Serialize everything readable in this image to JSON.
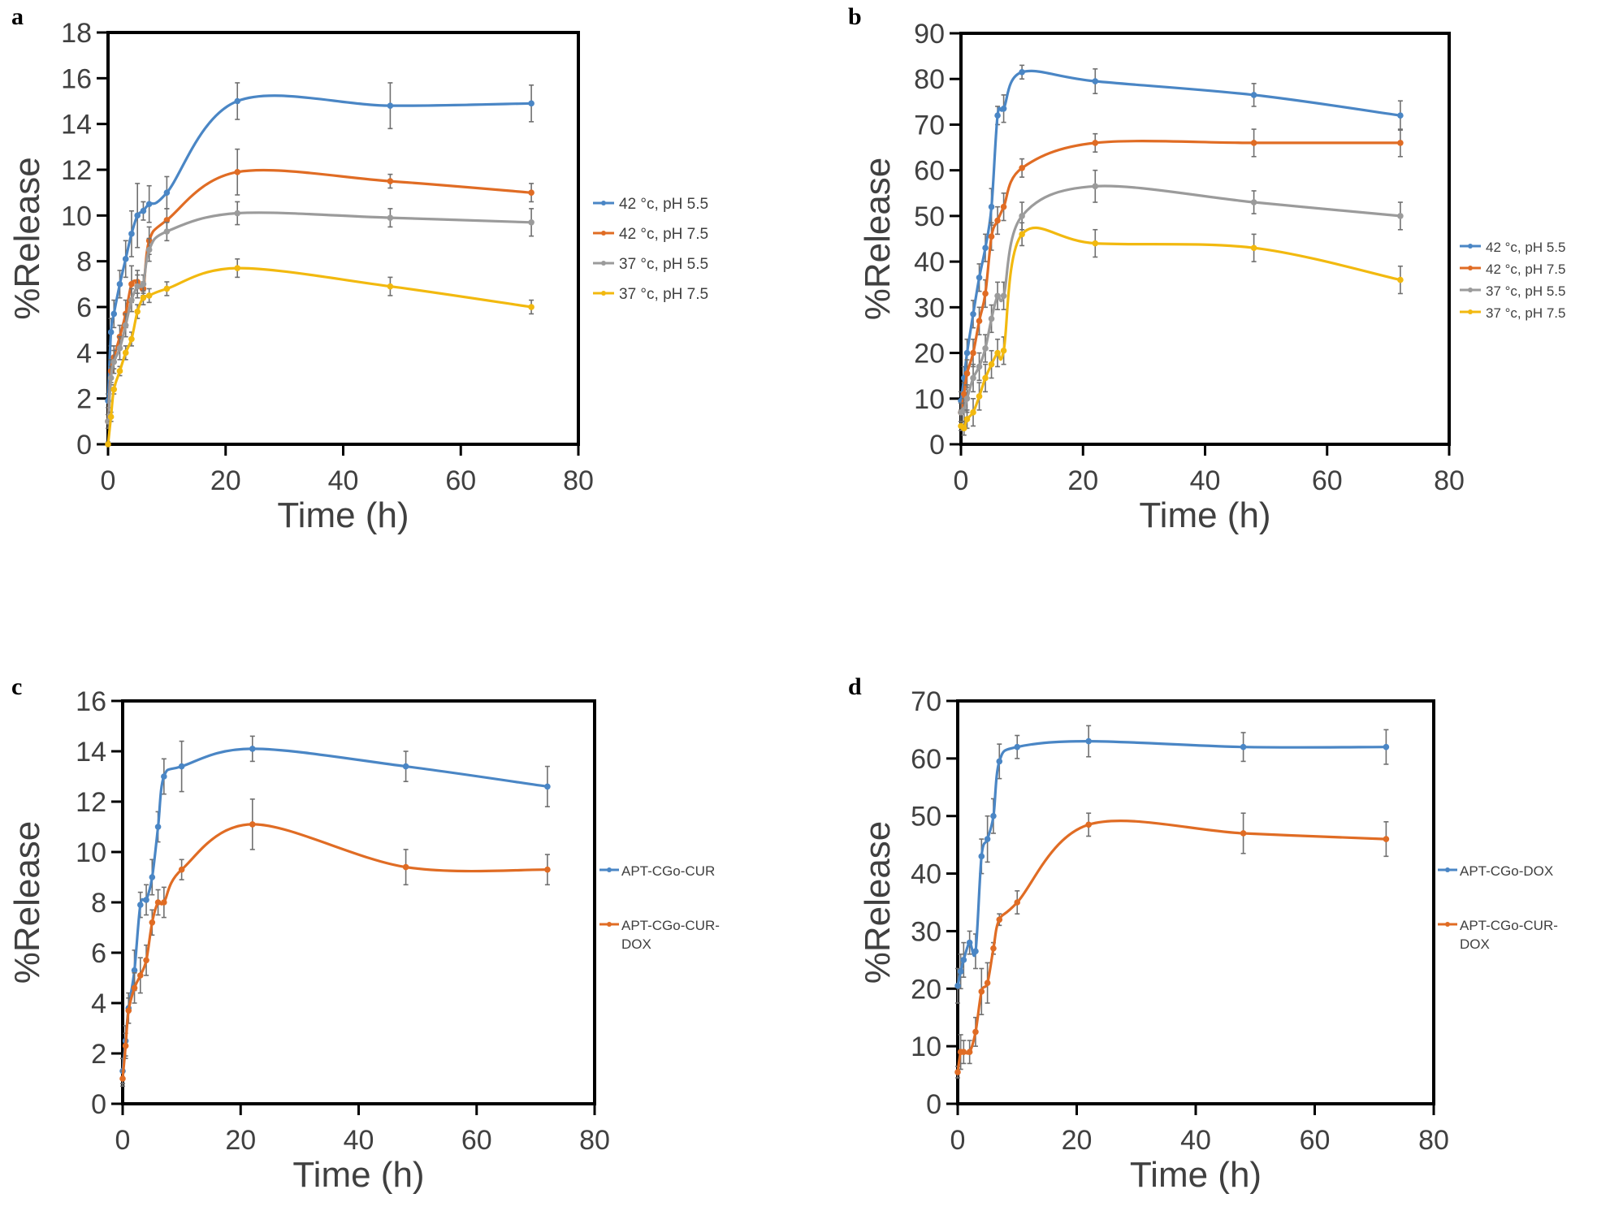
{
  "chart_data": [
    {
      "panel": "a",
      "type": "line",
      "title": "",
      "xlabel": "Time (h)",
      "ylabel": "%Release",
      "xlim": [
        0,
        80
      ],
      "ylim": [
        0,
        18
      ],
      "xticks": [
        0,
        20,
        40,
        60,
        80
      ],
      "yticks": [
        0,
        2,
        4,
        6,
        8,
        10,
        12,
        14,
        16,
        18
      ],
      "grid": false,
      "legend_position": "right",
      "x": [
        0,
        0.5,
        1,
        2,
        3,
        4,
        5,
        6,
        7,
        10,
        22,
        48,
        72
      ],
      "series": [
        {
          "name": "42 °c, pH 5.5",
          "color": "#4a86c5",
          "values": [
            1.9,
            4.9,
            5.7,
            7.0,
            8.1,
            9.2,
            10.0,
            10.2,
            10.5,
            11.0,
            15.0,
            14.8,
            14.9
          ],
          "errors": [
            0.3,
            0.6,
            0.6,
            0.6,
            0.8,
            1.0,
            1.4,
            0.4,
            0.8,
            0.7,
            0.8,
            1.0,
            0.8
          ]
        },
        {
          "name": "42 °c, pH 7.5",
          "color": "#e06c24",
          "values": [
            1.0,
            3.2,
            3.8,
            4.7,
            5.7,
            7.0,
            7.1,
            6.8,
            8.9,
            9.8,
            11.9,
            11.5,
            11.0
          ],
          "errors": [
            0.3,
            0.5,
            0.5,
            0.5,
            0.6,
            0.8,
            0.5,
            0.3,
            0.6,
            0.5,
            1.0,
            0.3,
            0.4
          ]
        },
        {
          "name": "37 °c, pH 5.5",
          "color": "#9b9b9b",
          "values": [
            1.0,
            2.9,
            3.6,
            4.2,
            5.2,
            6.3,
            6.9,
            7.0,
            8.5,
            9.3,
            10.1,
            9.9,
            9.7
          ],
          "errors": [
            0.3,
            0.5,
            0.5,
            0.5,
            0.5,
            0.5,
            0.5,
            0.4,
            0.5,
            0.4,
            0.5,
            0.4,
            0.6
          ]
        },
        {
          "name": "37 °c, pH 7.5",
          "color": "#f2b90f",
          "values": [
            0.0,
            1.2,
            2.4,
            3.2,
            4.0,
            4.6,
            5.8,
            6.4,
            6.5,
            6.8,
            7.7,
            6.9,
            6.0
          ],
          "errors": [
            0.1,
            0.2,
            0.2,
            0.2,
            0.3,
            0.3,
            0.3,
            0.3,
            0.3,
            0.3,
            0.4,
            0.4,
            0.3
          ]
        }
      ]
    },
    {
      "panel": "b",
      "type": "line",
      "title": "",
      "xlabel": "Time (h)",
      "ylabel": "%Release",
      "xlim": [
        0,
        80
      ],
      "ylim": [
        0,
        90
      ],
      "xticks": [
        0,
        20,
        40,
        60,
        80
      ],
      "yticks": [
        0,
        10,
        20,
        30,
        40,
        50,
        60,
        70,
        80,
        90
      ],
      "grid": false,
      "legend_position": "right",
      "x": [
        0,
        0.5,
        1,
        2,
        3,
        4,
        5,
        6,
        7,
        10,
        22,
        48,
        72
      ],
      "series": [
        {
          "name": "42 °c, pH 5.5",
          "color": "#4a86c5",
          "values": [
            9.5,
            14.5,
            20.0,
            28.5,
            36.5,
            43.0,
            52.0,
            72.0,
            73.5,
            81.5,
            79.5,
            76.5,
            72.0
          ],
          "errors": [
            2.0,
            2.5,
            3.0,
            3.0,
            3.0,
            3.0,
            4.0,
            2.0,
            3.0,
            1.5,
            2.7,
            2.5,
            3.2
          ]
        },
        {
          "name": "42 °c, pH 7.5",
          "color": "#e06c24",
          "values": [
            7.0,
            11.0,
            15.5,
            20.0,
            27.0,
            33.0,
            45.5,
            49.0,
            52.0,
            60.5,
            66.0,
            66.0,
            66.0
          ],
          "errors": [
            2.0,
            2.5,
            3.0,
            3.0,
            3.0,
            3.0,
            3.0,
            3.0,
            3.0,
            2.0,
            2.0,
            3.0,
            3.0
          ]
        },
        {
          "name": "37 °c, pH 5.5",
          "color": "#9b9b9b",
          "values": [
            7.0,
            7.5,
            10.0,
            14.5,
            17.0,
            21.0,
            27.5,
            32.5,
            32.5,
            50.0,
            56.5,
            53.0,
            50.0
          ],
          "errors": [
            2.0,
            2.5,
            3.0,
            3.0,
            3.0,
            3.0,
            3.0,
            3.0,
            3.0,
            3.0,
            3.5,
            2.5,
            3.0
          ]
        },
        {
          "name": "37 °c, pH 7.5",
          "color": "#f2b90f",
          "values": [
            4.0,
            3.5,
            5.5,
            7.0,
            10.5,
            14.5,
            17.5,
            20.0,
            20.5,
            46.0,
            44.0,
            43.0,
            36.0
          ],
          "errors": [
            1.0,
            1.5,
            2.0,
            3.0,
            3.0,
            3.0,
            3.0,
            3.0,
            3.0,
            2.5,
            3.0,
            3.0,
            3.0
          ]
        }
      ]
    },
    {
      "panel": "c",
      "type": "line",
      "title": "",
      "xlabel": "Time (h)",
      "ylabel": "%Release",
      "xlim": [
        0,
        80
      ],
      "ylim": [
        0,
        16
      ],
      "xticks": [
        0,
        20,
        40,
        60,
        80
      ],
      "yticks": [
        0,
        2,
        4,
        6,
        8,
        10,
        12,
        14,
        16
      ],
      "grid": false,
      "legend_position": "right",
      "x": [
        0,
        0.5,
        1,
        2,
        3,
        4,
        5,
        6,
        7,
        10,
        22,
        48,
        72
      ],
      "series": [
        {
          "name": "APT-CGo-CUR",
          "color": "#4a86c5",
          "values": [
            1.3,
            2.5,
            3.8,
            5.3,
            7.9,
            8.1,
            9.0,
            11.0,
            13.0,
            13.4,
            14.1,
            13.4,
            12.6
          ],
          "errors": [
            0.5,
            0.6,
            0.6,
            0.8,
            0.5,
            0.6,
            0.7,
            0.6,
            0.7,
            1.0,
            0.5,
            0.6,
            0.8
          ]
        },
        {
          "name": "APT-CGo-CUR-DOX",
          "color": "#e06c24",
          "values": [
            1.0,
            2.3,
            3.7,
            4.6,
            5.1,
            5.7,
            7.2,
            8.0,
            8.0,
            9.3,
            11.1,
            9.4,
            9.3
          ],
          "errors": [
            0.3,
            0.5,
            0.5,
            0.6,
            0.7,
            0.6,
            0.5,
            0.5,
            0.6,
            0.4,
            1.0,
            0.7,
            0.6
          ]
        }
      ]
    },
    {
      "panel": "d",
      "type": "line",
      "title": "",
      "xlabel": "Time (h)",
      "ylabel": "%Release",
      "xlim": [
        0,
        80
      ],
      "ylim": [
        0,
        70
      ],
      "xticks": [
        0,
        20,
        40,
        60,
        80
      ],
      "yticks": [
        0,
        10,
        20,
        30,
        40,
        50,
        60,
        70
      ],
      "grid": false,
      "legend_position": "right",
      "x": [
        0,
        0.5,
        1,
        2,
        3,
        4,
        5,
        6,
        7,
        10,
        22,
        48,
        72
      ],
      "series": [
        {
          "name": "APT-CGo-DOX",
          "color": "#4a86c5",
          "values": [
            20.5,
            23.0,
            25.0,
            28.0,
            26.5,
            43.0,
            46.0,
            50.0,
            59.5,
            62.0,
            63.0,
            62.0,
            62.0
          ],
          "errors": [
            3.0,
            3.0,
            3.0,
            2.0,
            3.0,
            3.0,
            4.0,
            3.0,
            3.0,
            2.0,
            2.7,
            2.5,
            3.0
          ]
        },
        {
          "name": "APT-CGo-CUR-DOX",
          "color": "#e06c24",
          "values": [
            5.5,
            9.0,
            9.0,
            9.0,
            12.5,
            19.5,
            21.0,
            27.0,
            32.0,
            35.0,
            48.5,
            47.0,
            46.0
          ],
          "errors": [
            1.0,
            3.0,
            2.0,
            2.0,
            2.5,
            4.0,
            3.5,
            1.0,
            1.0,
            2.0,
            2.0,
            3.5,
            3.0
          ]
        }
      ]
    }
  ]
}
